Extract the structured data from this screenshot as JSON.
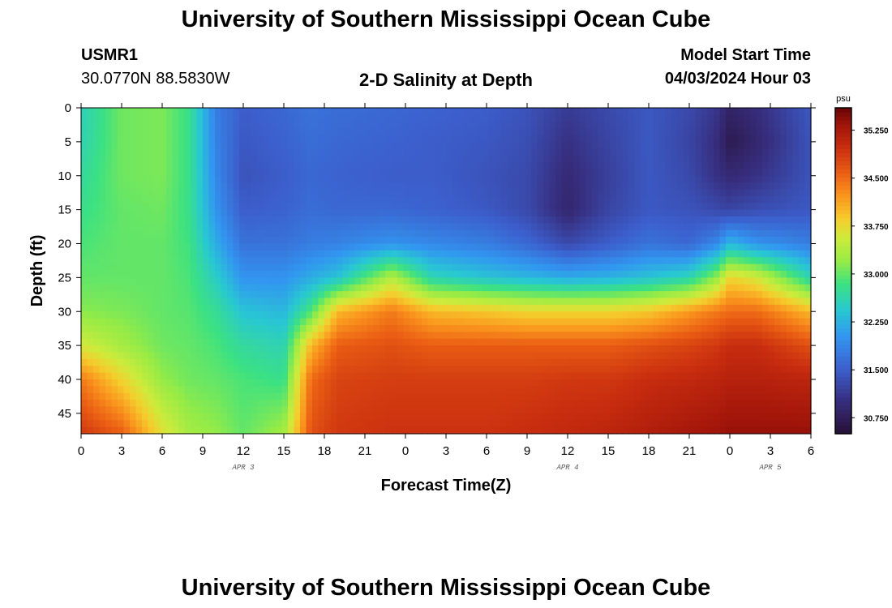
{
  "page": {
    "title": "University of Southern Mississippi Ocean Cube",
    "footer_title": "University of Southern Mississippi Ocean Cube",
    "station": "USMR1",
    "location": "30.0770N  88.5830W",
    "plot_title": "2-D Salinity at Depth",
    "model_start_label": "Model Start Time",
    "model_start_value": "04/03/2024 Hour 03"
  },
  "chart_data": {
    "type": "heatmap",
    "title": "2-D Salinity at Depth",
    "xlabel": "Forecast Time(Z)",
    "ylabel": "Depth (ft)",
    "x_tick_labels": [
      "0",
      "3",
      "6",
      "9",
      "12",
      "15",
      "18",
      "21",
      "0",
      "3",
      "6",
      "9",
      "12",
      "15",
      "18",
      "21",
      "0",
      "3",
      "6"
    ],
    "x_range_hours": [
      0,
      54
    ],
    "date_labels": [
      {
        "text": "APR 3",
        "hour": 12
      },
      {
        "text": "APR 4",
        "hour": 36
      },
      {
        "text": "APR 5",
        "hour": 51
      }
    ],
    "y_tick_labels": [
      "0",
      "5",
      "10",
      "15",
      "20",
      "25",
      "30",
      "35",
      "40",
      "45"
    ],
    "y_ticks": [
      0,
      5,
      10,
      15,
      20,
      25,
      30,
      35,
      40,
      45
    ],
    "ylim": [
      0,
      48
    ],
    "y_inverted": true,
    "colorbar": {
      "unit": "psu",
      "min": 30.5,
      "max": 35.6,
      "tick_labels": [
        "35.250",
        "34.500",
        "33.750",
        "33.000",
        "32.250",
        "31.500",
        "30.750"
      ],
      "ticks": [
        35.25,
        34.5,
        33.75,
        33.0,
        32.25,
        31.5,
        30.75
      ]
    },
    "fields": {
      "depth": [
        0,
        5,
        10,
        15,
        20,
        25,
        30,
        35,
        40,
        48
      ],
      "profiles": [
        {
          "hour": 0,
          "values": [
            32.55,
            32.6,
            32.7,
            32.8,
            32.9,
            33.0,
            33.15,
            33.6,
            34.4,
            34.9
          ]
        },
        {
          "hour": 3,
          "values": [
            33.05,
            33.05,
            33.05,
            33.0,
            33.0,
            33.0,
            33.1,
            33.3,
            33.8,
            34.6
          ]
        },
        {
          "hour": 6,
          "values": [
            33.1,
            33.1,
            33.1,
            33.05,
            33.0,
            33.0,
            33.0,
            33.05,
            33.2,
            33.7
          ]
        },
        {
          "hour": 8,
          "values": [
            32.8,
            32.8,
            32.8,
            32.8,
            32.85,
            32.9,
            32.95,
            33.0,
            33.05,
            33.3
          ]
        },
        {
          "hour": 10,
          "values": [
            31.8,
            31.85,
            31.9,
            32.0,
            32.2,
            32.5,
            32.75,
            32.9,
            33.0,
            33.2
          ]
        },
        {
          "hour": 12,
          "values": [
            31.5,
            31.45,
            31.4,
            31.5,
            31.7,
            32.0,
            32.4,
            32.7,
            32.9,
            33.0
          ]
        },
        {
          "hour": 15,
          "values": [
            31.6,
            31.55,
            31.5,
            31.55,
            31.7,
            32.0,
            32.3,
            32.6,
            32.8,
            33.3
          ]
        },
        {
          "hour": 17,
          "values": [
            31.7,
            31.65,
            31.6,
            31.65,
            31.8,
            32.2,
            32.9,
            34.0,
            34.5,
            34.7
          ]
        },
        {
          "hour": 19,
          "values": [
            31.65,
            31.6,
            31.55,
            31.6,
            31.85,
            32.4,
            34.0,
            34.6,
            34.8,
            34.9
          ]
        },
        {
          "hour": 23,
          "values": [
            31.6,
            31.55,
            31.5,
            31.6,
            32.0,
            33.4,
            34.4,
            34.7,
            34.85,
            34.95
          ]
        },
        {
          "hour": 26,
          "values": [
            31.55,
            31.5,
            31.5,
            31.55,
            31.9,
            32.6,
            34.0,
            34.6,
            34.85,
            34.95
          ]
        },
        {
          "hour": 30,
          "values": [
            31.5,
            31.45,
            31.4,
            31.45,
            31.8,
            32.4,
            33.9,
            34.6,
            34.85,
            34.95
          ]
        },
        {
          "hour": 33,
          "values": [
            31.4,
            31.35,
            31.3,
            31.3,
            31.6,
            32.3,
            33.8,
            34.6,
            34.85,
            35.0
          ]
        },
        {
          "hour": 36,
          "values": [
            31.15,
            31.05,
            30.95,
            30.9,
            31.3,
            32.2,
            33.8,
            34.6,
            34.9,
            35.05
          ]
        },
        {
          "hour": 39,
          "values": [
            31.3,
            31.25,
            31.2,
            31.25,
            31.5,
            32.25,
            33.8,
            34.6,
            34.9,
            35.1
          ]
        },
        {
          "hour": 42,
          "values": [
            31.45,
            31.45,
            31.45,
            31.45,
            31.7,
            32.4,
            33.9,
            34.7,
            35.0,
            35.2
          ]
        },
        {
          "hour": 45,
          "values": [
            31.3,
            31.25,
            31.3,
            31.4,
            31.6,
            32.6,
            34.2,
            34.8,
            35.05,
            35.3
          ]
        },
        {
          "hour": 47,
          "values": [
            31.1,
            31.0,
            31.05,
            31.3,
            31.9,
            33.2,
            34.4,
            34.9,
            35.1,
            35.35
          ]
        },
        {
          "hour": 48,
          "values": [
            30.85,
            30.7,
            30.95,
            31.25,
            32.3,
            33.8,
            34.5,
            35.0,
            35.15,
            35.4
          ]
        },
        {
          "hour": 50,
          "values": [
            31.0,
            30.9,
            31.05,
            31.35,
            32.0,
            33.6,
            34.5,
            35.0,
            35.15,
            35.4
          ]
        },
        {
          "hour": 54,
          "values": [
            31.45,
            31.4,
            31.4,
            31.45,
            31.8,
            32.6,
            34.0,
            34.7,
            35.1,
            35.4
          ]
        }
      ]
    }
  }
}
